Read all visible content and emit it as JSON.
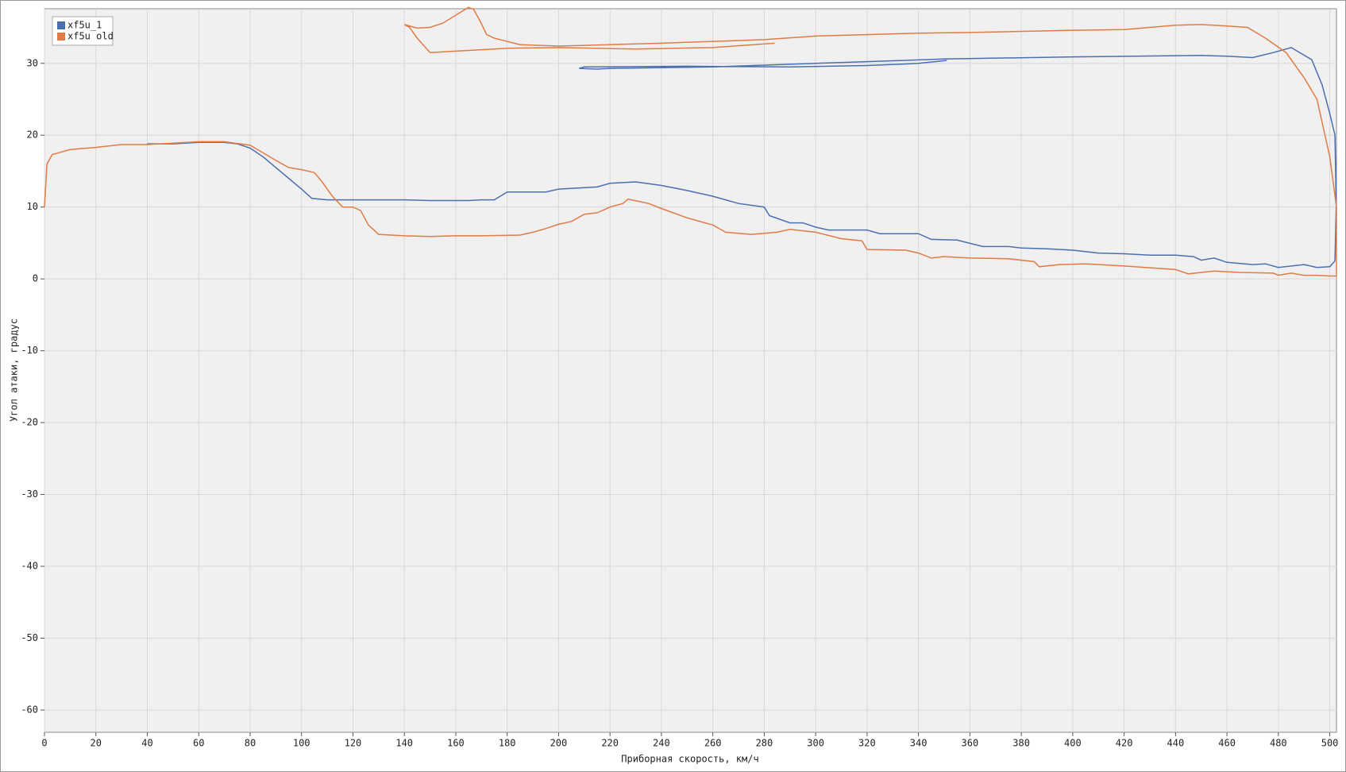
{
  "chart_data": {
    "type": "line",
    "x_label": "Приборная скорость, км/ч",
    "y_label": "Угол атаки, градус",
    "xlim": [
      0,
      502.6
    ],
    "ylim": [
      -63.1,
      37.6
    ],
    "xticks": [
      0,
      20,
      40,
      60,
      80,
      100,
      120,
      140,
      160,
      180,
      200,
      220,
      240,
      260,
      280,
      300,
      320,
      340,
      360,
      380,
      400,
      420,
      440,
      460,
      480,
      500
    ],
    "yticks": [
      -60,
      -50,
      -40,
      -30,
      -20,
      -10,
      0,
      10,
      20,
      30
    ],
    "grid": true,
    "legend": "upper left",
    "series": [
      {
        "name": "xf5u_1",
        "color": "#4a6fb0",
        "x": [
          40,
          50,
          60,
          70,
          75,
          80,
          85,
          90,
          95,
          100,
          104,
          110,
          140,
          150,
          165,
          170,
          175,
          180,
          195,
          200,
          215,
          220,
          230,
          240,
          250,
          260,
          270,
          280,
          282,
          290,
          295,
          300,
          305,
          320,
          325,
          340,
          345,
          355,
          365,
          375,
          380,
          390,
          400,
          410,
          420,
          430,
          440,
          447,
          450,
          455,
          460,
          470,
          475,
          480,
          490,
          495,
          500,
          502,
          502.5,
          502,
          500,
          497,
          493,
          485,
          478,
          470,
          460,
          450,
          400,
          350,
          300,
          260,
          220,
          215,
          208,
          210,
          250,
          290,
          320,
          340,
          351
        ],
        "values": [
          18.8,
          18.8,
          19,
          19,
          18.8,
          18.2,
          17,
          15.5,
          14,
          12.5,
          11.2,
          11,
          11,
          10.9,
          10.9,
          11,
          11,
          12.1,
          12.1,
          12.5,
          12.8,
          13.3,
          13.5,
          13,
          12.3,
          11.5,
          10.5,
          10,
          8.8,
          7.8,
          7.8,
          7.2,
          6.8,
          6.8,
          6.3,
          6.3,
          5.5,
          5.4,
          4.5,
          4.5,
          4.3,
          4.2,
          4,
          3.6,
          3.5,
          3.3,
          3.3,
          3.1,
          2.6,
          2.9,
          2.3,
          2,
          2.1,
          1.6,
          2,
          1.6,
          1.7,
          2.5,
          10,
          20,
          23,
          27,
          30.5,
          32.2,
          31.5,
          30.8,
          31,
          31.1,
          30.9,
          30.6,
          30,
          29.5,
          29.3,
          29.2,
          29.3,
          29.5,
          29.6,
          29.5,
          29.7,
          30,
          30.4
        ]
      },
      {
        "name": "xf5u old",
        "color": "#e07b45",
        "x": [
          0,
          1,
          3,
          5,
          10,
          20,
          30,
          40,
          50,
          60,
          70,
          80,
          90,
          95,
          100,
          105,
          108,
          112,
          116,
          120,
          123,
          126,
          130,
          140,
          150,
          160,
          170,
          185,
          190,
          195,
          200,
          205,
          210,
          215,
          220,
          225,
          227,
          235,
          240,
          250,
          260,
          265,
          275,
          285,
          290,
          300,
          310,
          318,
          320,
          335,
          340,
          345,
          350,
          360,
          375,
          385,
          387,
          395,
          405,
          420,
          440,
          445,
          455,
          465,
          478,
          480,
          485,
          490,
          495,
          500,
          502.6,
          502.6,
          500,
          495,
          490,
          483,
          475,
          468,
          460,
          450,
          440,
          420,
          400,
          360,
          340,
          300,
          280,
          240,
          200,
          185,
          175,
          172,
          170,
          167,
          165,
          160,
          155,
          150,
          145,
          140,
          142,
          145,
          150,
          160,
          180,
          200,
          230,
          260,
          284
        ],
        "values": [
          10,
          16,
          17.3,
          17.5,
          18,
          18.3,
          18.7,
          18.7,
          18.9,
          19.1,
          19.1,
          18.6,
          16.5,
          15.5,
          15.2,
          14.8,
          13.5,
          11.5,
          10,
          10,
          9.5,
          7.5,
          6.2,
          6,
          5.9,
          6,
          6,
          6.1,
          6.5,
          7,
          7.6,
          8,
          9,
          9.2,
          10,
          10.5,
          11.1,
          10.5,
          9.8,
          8.5,
          7.5,
          6.5,
          6.2,
          6.5,
          6.9,
          6.5,
          5.6,
          5.3,
          4.1,
          4,
          3.6,
          2.9,
          3.1,
          2.9,
          2.8,
          2.4,
          1.7,
          2,
          2.1,
          1.8,
          1.3,
          0.7,
          1.1,
          0.9,
          0.8,
          0.5,
          0.8,
          0.5,
          0.5,
          0.4,
          0.4,
          10,
          17,
          25,
          28,
          31.5,
          33.5,
          35,
          35.2,
          35.4,
          35.3,
          34.7,
          34.6,
          34.3,
          34.2,
          33.8,
          33.3,
          32.8,
          32.4,
          32.6,
          33.5,
          34,
          35.5,
          37.5,
          37.8,
          36.7,
          35.6,
          35,
          34.9,
          35.4,
          35,
          33.5,
          31.5,
          31.7,
          32.1,
          32.2,
          32,
          32.2,
          32.8
        ]
      }
    ]
  }
}
